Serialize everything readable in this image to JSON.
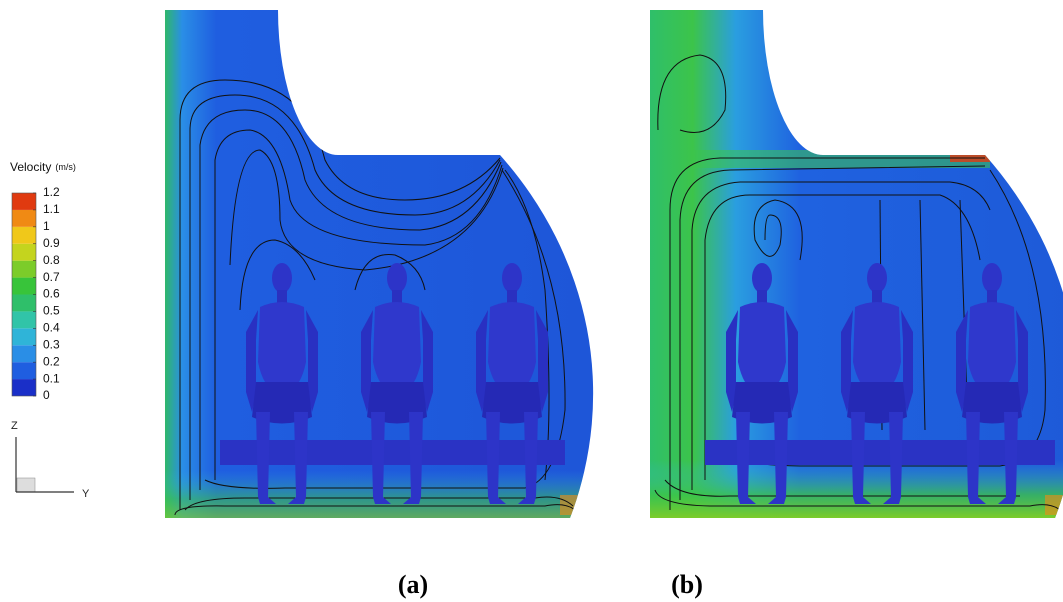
{
  "legend": {
    "title": "Velocity",
    "unit": "(m/s)",
    "ticks": [
      0,
      0.1,
      0.2,
      0.3,
      0.4,
      0.5,
      0.6,
      0.7,
      0.8,
      0.9,
      1,
      1.1,
      1.2
    ],
    "colors": [
      "#1a2fc8",
      "#1f5ee0",
      "#2a8ee6",
      "#2fb4d8",
      "#31c4a8",
      "#2fbf6a",
      "#38c43a",
      "#7ccc2a",
      "#c4d41e",
      "#f0c81a",
      "#f08a14",
      "#e03a10"
    ]
  },
  "axes": {
    "vertical": "Z",
    "horizontal": "Y"
  },
  "panels": [
    {
      "label": "(a)"
    },
    {
      "label": "(b)"
    }
  ]
}
